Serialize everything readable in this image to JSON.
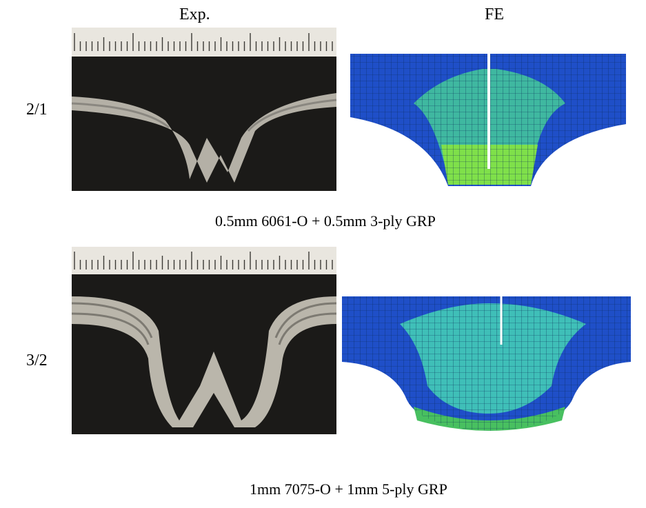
{
  "columns": {
    "left": "Exp.",
    "right": "FE"
  },
  "rows": [
    {
      "label": "2/1",
      "caption": "0.5mm 6061-O + 0.5mm 3-ply GRP"
    },
    {
      "label": "3/2",
      "caption": "1mm 7075-O + 1mm 5-ply GRP"
    }
  ]
}
